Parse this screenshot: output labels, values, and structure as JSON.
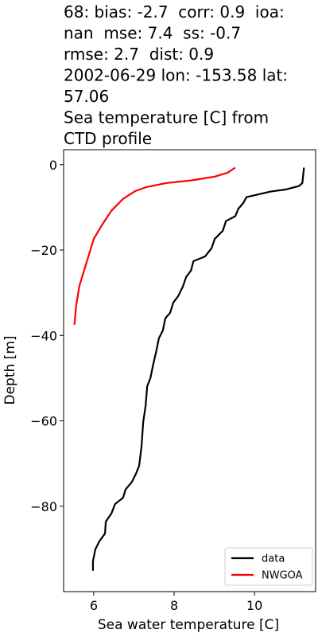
{
  "chart_data": {
    "type": "line",
    "title": [
      "68: bias: -2.7  corr: 0.9  ioa:",
      "nan  mse: 7.4  ss: -0.7",
      "rmse: 2.7  dist: 0.9",
      "2002-06-29 lon: -153.58 lat:",
      "57.06",
      "Sea temperature [C] from",
      "CTD profile"
    ],
    "x_label": "Sea water temperature [C]",
    "y_label": "Depth [m]",
    "xlim": [
      5.25,
      11.52
    ],
    "ylim": [
      -100,
      3.5
    ],
    "xticks": [
      6,
      8,
      10
    ],
    "yticks": [
      0,
      {
        "value": -20,
        "label": "−20"
      },
      {
        "value": -40,
        "label": "−40"
      },
      {
        "value": -60,
        "label": "−60"
      },
      {
        "value": -80,
        "label": "−80"
      }
    ],
    "legend": "lower right",
    "series": [
      {
        "name": "data",
        "color": "#000000",
        "x": [
          11.23,
          11.19,
          11.11,
          10.79,
          10.4,
          9.8,
          9.72,
          9.6,
          9.52,
          9.29,
          9.21,
          9.01,
          8.93,
          8.77,
          8.48,
          8.42,
          8.3,
          8.22,
          8.1,
          7.98,
          7.9,
          7.78,
          7.72,
          7.62,
          7.56,
          7.47,
          7.41,
          7.33,
          7.29,
          7.23,
          7.19,
          7.13,
          7.05,
          6.95,
          6.79,
          6.73,
          6.53,
          6.44,
          6.3,
          6.28,
          6.14,
          6.04,
          5.98,
          5.98
        ],
        "values": [
          -0.7,
          -4.3,
          -5.0,
          -5.8,
          -6.3,
          -7.6,
          -9.0,
          -10.3,
          -12.1,
          -13.2,
          -15.5,
          -17.4,
          -19.6,
          -21.5,
          -22.6,
          -24.8,
          -26.3,
          -28.5,
          -30.8,
          -32.3,
          -34.7,
          -36.0,
          -38.8,
          -40.7,
          -43.5,
          -47.2,
          -50.0,
          -51.9,
          -56.5,
          -60.3,
          -65.9,
          -70.5,
          -72.4,
          -74.3,
          -76.1,
          -78.0,
          -79.5,
          -81.7,
          -83.6,
          -86.4,
          -88.2,
          -90.1,
          -92.9,
          -95.1
        ]
      },
      {
        "name": "NWGOA",
        "color": "#ff0000",
        "x": [
          9.52,
          9.33,
          9.01,
          8.42,
          7.82,
          7.33,
          7.03,
          6.73,
          6.44,
          6.2,
          6.0,
          5.88,
          5.76,
          5.64,
          5.56,
          5.52
        ],
        "values": [
          -0.7,
          -1.9,
          -2.8,
          -3.7,
          -4.3,
          -5.2,
          -6.2,
          -8.0,
          -10.8,
          -14.2,
          -17.4,
          -21.1,
          -24.8,
          -28.5,
          -33.2,
          -37.5
        ]
      }
    ]
  }
}
